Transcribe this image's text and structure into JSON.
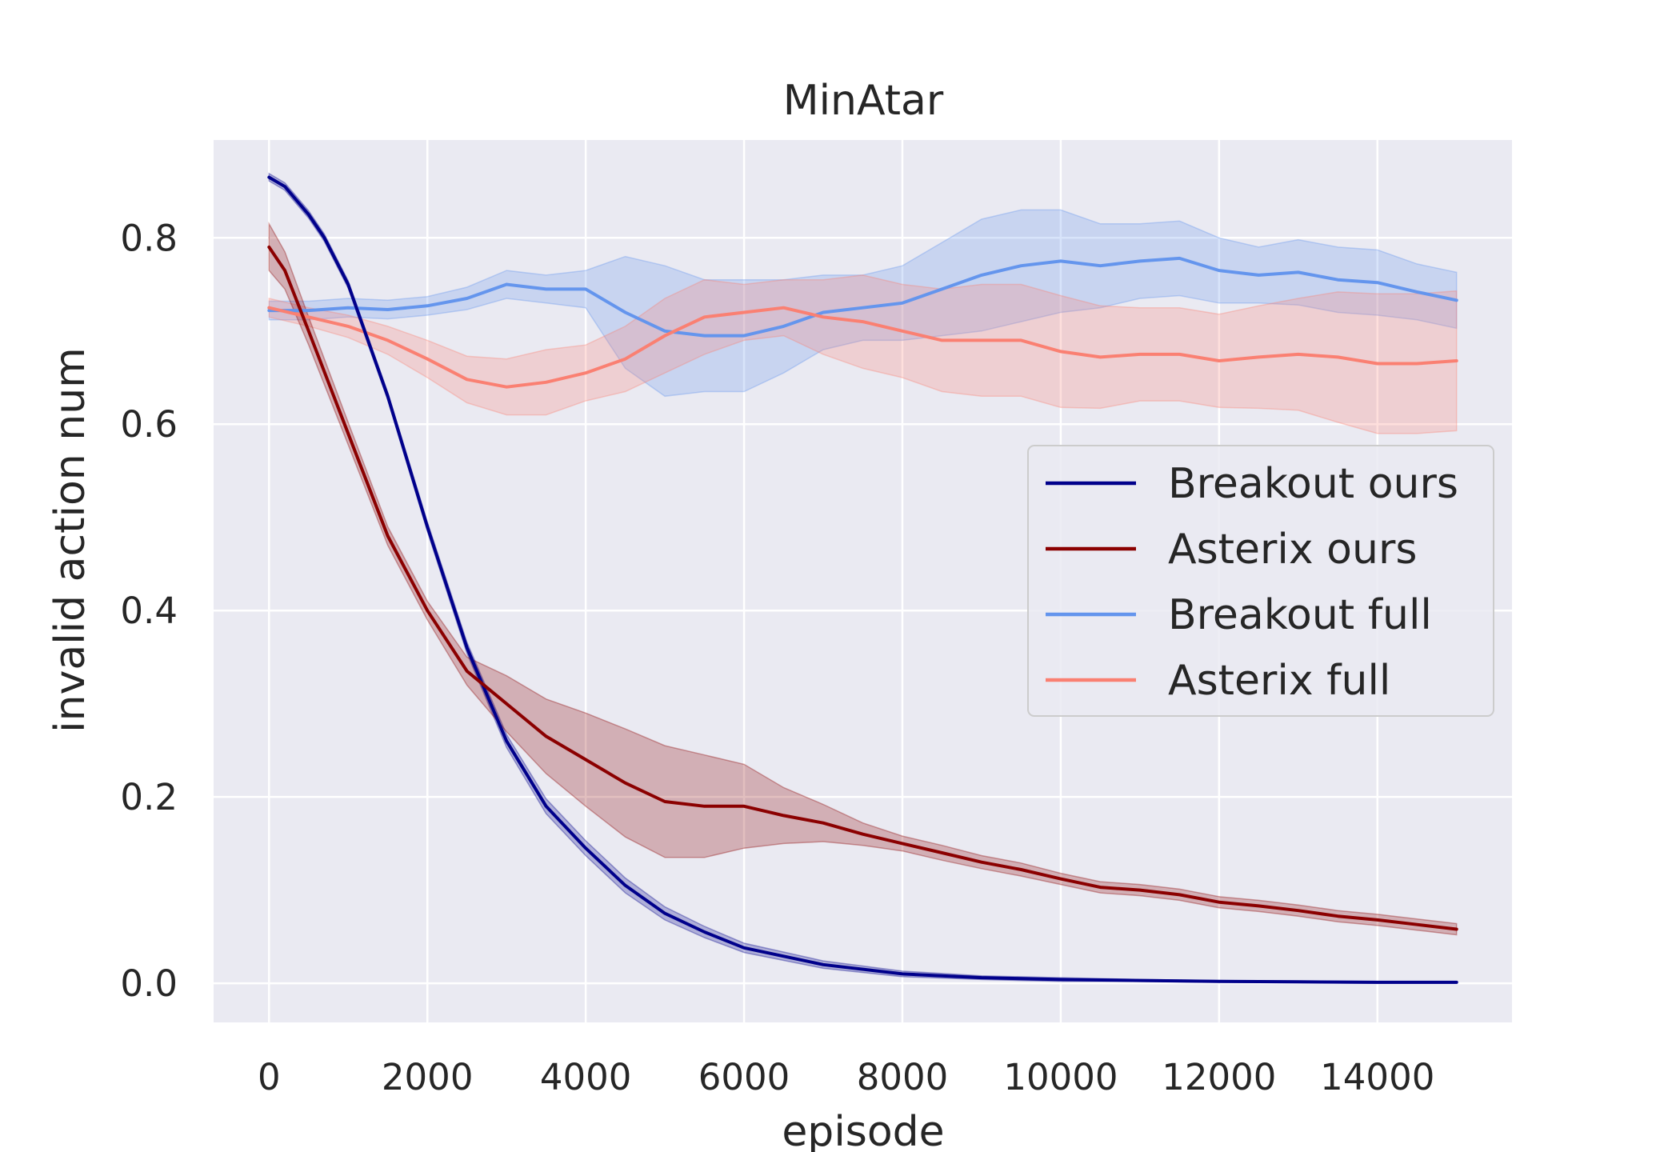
{
  "chart_data": {
    "type": "line",
    "title": "MinAtar",
    "xlabel": "episode",
    "ylabel": "invalid action num",
    "xlim": [
      -700,
      15700
    ],
    "ylim": [
      -0.042,
      0.905
    ],
    "xticks": [
      0,
      2000,
      4000,
      6000,
      8000,
      10000,
      12000,
      14000
    ],
    "xtick_labels": [
      "0",
      "2000",
      "4000",
      "6000",
      "8000",
      "10000",
      "12000",
      "14000"
    ],
    "yticks": [
      0.0,
      0.2,
      0.4,
      0.6,
      0.8
    ],
    "ytick_labels": [
      "0.0",
      "0.2",
      "0.4",
      "0.6",
      "0.8"
    ],
    "grid": true,
    "legend_position": "center-right",
    "series": [
      {
        "name": "Breakout ours",
        "color": "#00008b",
        "x": [
          0,
          200,
          500,
          700,
          1000,
          1500,
          2000,
          2500,
          3000,
          3500,
          4000,
          4500,
          5000,
          5500,
          6000,
          7000,
          8000,
          9000,
          10000,
          11000,
          12000,
          13000,
          14000,
          15000
        ],
        "y": [
          0.865,
          0.855,
          0.825,
          0.8,
          0.75,
          0.63,
          0.49,
          0.36,
          0.26,
          0.19,
          0.145,
          0.105,
          0.075,
          0.055,
          0.038,
          0.02,
          0.01,
          0.006,
          0.004,
          0.003,
          0.002,
          0.0015,
          0.001,
          0.001
        ],
        "band_half_width": [
          0.004,
          0.004,
          0.004,
          0.004,
          0.004,
          0.004,
          0.005,
          0.006,
          0.007,
          0.008,
          0.008,
          0.008,
          0.007,
          0.006,
          0.005,
          0.004,
          0.003,
          0.002,
          0.002,
          0.001,
          0.001,
          0.001,
          0.001,
          0.001
        ]
      },
      {
        "name": "Asterix ours",
        "color": "#8b0000",
        "x": [
          0,
          200,
          500,
          1000,
          1500,
          2000,
          2500,
          3000,
          3500,
          4000,
          4500,
          5000,
          5500,
          6000,
          6500,
          7000,
          7500,
          8000,
          8500,
          9000,
          9500,
          10000,
          10500,
          11000,
          11500,
          12000,
          12500,
          13000,
          13500,
          14000,
          14500,
          15000
        ],
        "y": [
          0.79,
          0.765,
          0.7,
          0.59,
          0.48,
          0.4,
          0.335,
          0.3,
          0.265,
          0.24,
          0.215,
          0.195,
          0.19,
          0.19,
          0.18,
          0.172,
          0.16,
          0.15,
          0.14,
          0.13,
          0.122,
          0.112,
          0.103,
          0.1,
          0.095,
          0.087,
          0.083,
          0.078,
          0.072,
          0.068,
          0.063,
          0.058
        ],
        "band_half_width": [
          0.025,
          0.02,
          0.015,
          0.012,
          0.01,
          0.01,
          0.015,
          0.03,
          0.04,
          0.05,
          0.058,
          0.06,
          0.055,
          0.045,
          0.03,
          0.02,
          0.012,
          0.008,
          0.008,
          0.007,
          0.007,
          0.006,
          0.006,
          0.006,
          0.006,
          0.006,
          0.006,
          0.006,
          0.006,
          0.006,
          0.006,
          0.006
        ]
      },
      {
        "name": "Breakout full",
        "color": "#6495ed",
        "x": [
          0,
          500,
          1000,
          1500,
          2000,
          2500,
          3000,
          3500,
          4000,
          4500,
          5000,
          5500,
          6000,
          6500,
          7000,
          7500,
          8000,
          8500,
          9000,
          9500,
          10000,
          10500,
          11000,
          11500,
          12000,
          12500,
          13000,
          13500,
          14000,
          14500,
          15000
        ],
        "y": [
          0.722,
          0.722,
          0.725,
          0.723,
          0.727,
          0.735,
          0.75,
          0.745,
          0.745,
          0.72,
          0.7,
          0.695,
          0.695,
          0.705,
          0.72,
          0.725,
          0.73,
          0.745,
          0.76,
          0.77,
          0.775,
          0.77,
          0.775,
          0.778,
          0.765,
          0.76,
          0.763,
          0.755,
          0.752,
          0.742,
          0.733
        ],
        "band_half_width": [
          0.01,
          0.01,
          0.01,
          0.01,
          0.01,
          0.012,
          0.015,
          0.015,
          0.02,
          0.06,
          0.07,
          0.06,
          0.06,
          0.05,
          0.04,
          0.035,
          0.04,
          0.05,
          0.06,
          0.06,
          0.055,
          0.045,
          0.04,
          0.04,
          0.035,
          0.03,
          0.035,
          0.035,
          0.035,
          0.03,
          0.03
        ]
      },
      {
        "name": "Asterix full",
        "color": "#fa8072",
        "x": [
          0,
          500,
          1000,
          1500,
          2000,
          2500,
          3000,
          3500,
          4000,
          4500,
          5000,
          5500,
          6000,
          6500,
          7000,
          7500,
          8000,
          8500,
          9000,
          9500,
          10000,
          10500,
          11000,
          11500,
          12000,
          12500,
          13000,
          13500,
          14000,
          14500,
          15000
        ],
        "y": [
          0.725,
          0.715,
          0.705,
          0.69,
          0.67,
          0.648,
          0.64,
          0.645,
          0.655,
          0.67,
          0.695,
          0.715,
          0.72,
          0.725,
          0.715,
          0.71,
          0.7,
          0.69,
          0.69,
          0.69,
          0.678,
          0.672,
          0.675,
          0.675,
          0.668,
          0.672,
          0.675,
          0.672,
          0.665,
          0.665,
          0.668
        ],
        "band_half_width": [
          0.01,
          0.01,
          0.012,
          0.015,
          0.02,
          0.025,
          0.03,
          0.035,
          0.03,
          0.035,
          0.04,
          0.04,
          0.03,
          0.03,
          0.04,
          0.05,
          0.05,
          0.055,
          0.06,
          0.06,
          0.06,
          0.055,
          0.05,
          0.05,
          0.05,
          0.055,
          0.06,
          0.07,
          0.075,
          0.075,
          0.075
        ]
      }
    ]
  }
}
